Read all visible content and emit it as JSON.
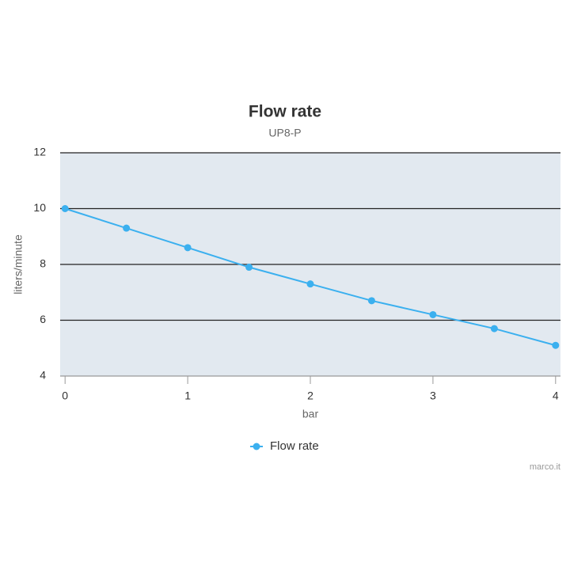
{
  "chart_data": {
    "type": "line",
    "title": "Flow rate",
    "subtitle": "UP8-P",
    "x_label": "bar",
    "y_label": "liters/minute",
    "x": [
      0,
      0.5,
      1,
      1.5,
      2,
      2.5,
      3,
      3.5,
      4
    ],
    "series": [
      {
        "name": "Flow rate",
        "color": "#3bb0ef",
        "values": [
          10,
          9.3,
          8.6,
          7.9,
          7.3,
          6.7,
          6.2,
          5.7,
          5.1
        ]
      }
    ],
    "xlim": [
      -0.04,
      4.04
    ],
    "ylim": [
      4,
      12
    ],
    "xticks": [
      0,
      1,
      2,
      3,
      4
    ],
    "yticks": [
      4,
      6,
      8,
      10,
      12
    ],
    "grid": true,
    "legend": "bottom",
    "credit": "marco.it"
  }
}
